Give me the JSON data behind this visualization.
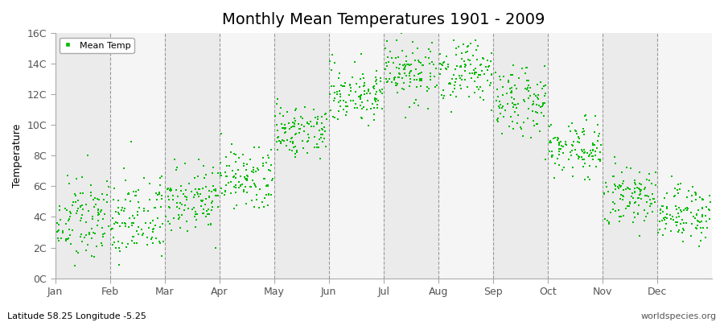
{
  "title": "Monthly Mean Temperatures 1901 - 2009",
  "ylabel": "Temperature",
  "xlabel_bottom_left": "Latitude 58.25 Longitude -5.25",
  "xlabel_bottom_right": "worldspecies.org",
  "month_labels": [
    "Jan",
    "Feb",
    "Mar",
    "Apr",
    "May",
    "Jun",
    "Jul",
    "Aug",
    "Sep",
    "Oct",
    "Nov",
    "Dec"
  ],
  "ytick_labels": [
    "0C",
    "2C",
    "4C",
    "6C",
    "8C",
    "10C",
    "12C",
    "14C",
    "16C"
  ],
  "ytick_values": [
    0,
    2,
    4,
    6,
    8,
    10,
    12,
    14,
    16
  ],
  "monthly_means": [
    3.8,
    3.8,
    5.2,
    6.5,
    9.5,
    12.2,
    13.5,
    13.5,
    11.5,
    8.5,
    5.5,
    4.2
  ],
  "monthly_stds": [
    1.3,
    1.3,
    1.1,
    1.1,
    1.0,
    1.0,
    1.0,
    1.0,
    1.0,
    1.0,
    0.9,
    1.1
  ],
  "n_years": 109,
  "marker_color": "#00BB00",
  "marker_size": 4,
  "band_color_dark": "#EBEBEB",
  "band_color_light": "#F5F5F5",
  "legend_label": "Mean Temp",
  "title_fontsize": 14,
  "axis_label_fontsize": 9,
  "tick_label_fontsize": 9
}
